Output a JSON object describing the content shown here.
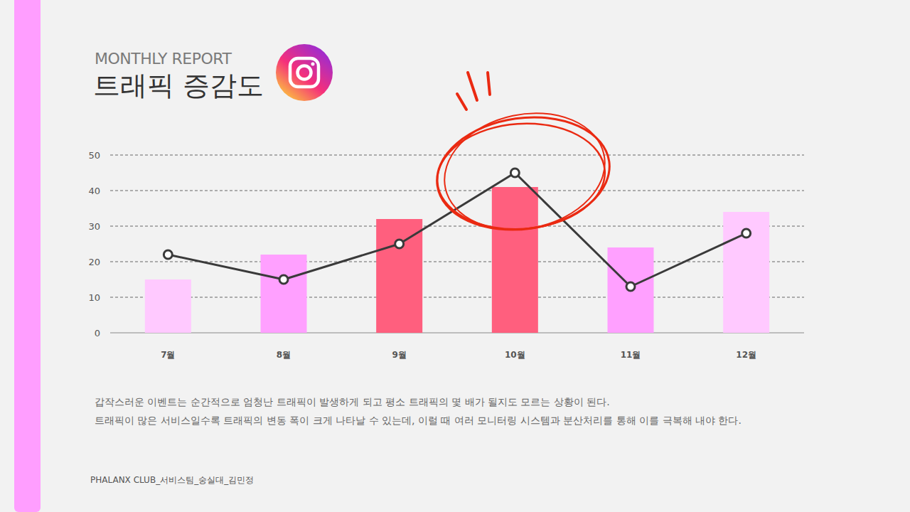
{
  "header": {
    "kicker": "MONTHLY REPORT",
    "title": "트래픽 증감도"
  },
  "chart_data": {
    "type": "bar",
    "categories": [
      "7월",
      "8월",
      "9월",
      "10월",
      "11월",
      "12월"
    ],
    "series": [
      {
        "type": "bar",
        "colors": [
          "#ffc9ff",
          "#ffa0ff",
          "#ff5f7e",
          "#ff5f7e",
          "#ffa0ff",
          "#ffc9ff"
        ],
        "values": [
          15,
          22,
          32,
          41,
          24,
          34
        ]
      },
      {
        "type": "line",
        "color": "#3a3a3a",
        "marker": "circle",
        "values": [
          22,
          15,
          25,
          45,
          13,
          28
        ]
      }
    ],
    "ylim": [
      0,
      50
    ],
    "yticks": [
      0,
      10,
      20,
      30,
      40,
      50
    ],
    "grid": true
  },
  "body": {
    "lines": [
      "갑작스러운 이벤트는 순간적으로 엄청난 트래픽이 발생하게 되고 평소 트래픽의 몇 배가 될지도 모르는 상황이 된다.",
      "트래픽이 많은 서비스일수록 트래픽의 변동 폭이 크게 나타날 수 있는데, 이럴 때 여러 모니터링 시스템과 분산처리를 통해 이를 극복해 내야 한다."
    ]
  },
  "footer": "PHALANX  CLUB_서비스팀_숭실대_김민정"
}
